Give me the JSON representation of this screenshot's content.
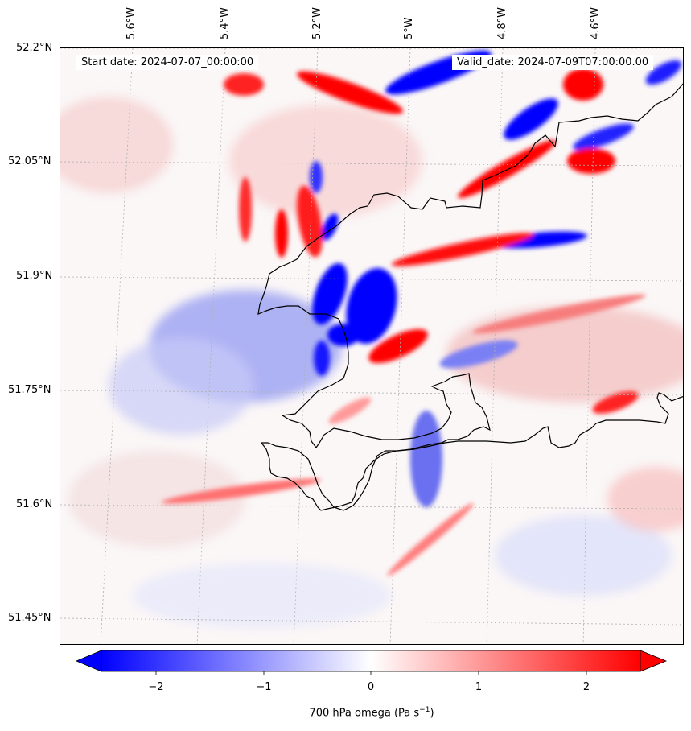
{
  "header": {
    "start_date": "Start date: 2024-07-07_00:00:00",
    "valid_date": "Valid_date: 2024-07-09T07:00:00.00"
  },
  "map": {
    "lat_labels": [
      "52.2°N",
      "52.05°N",
      "51.9°N",
      "51.75°N",
      "51.6°N",
      "51.45°N"
    ],
    "lon_labels": [
      "5.6°W",
      "5.4°W",
      "5.2°W",
      "5°W",
      "4.8°W",
      "4.6°W"
    ],
    "variable": "700 hPa omega",
    "field_colors": {
      "negative": "#0000ff",
      "positive": "#ff0000",
      "neutral": "#ffffff"
    },
    "coastline_color": "#000000",
    "gridline_style": "dotted grey"
  },
  "colorbar": {
    "ticks": [
      "−2",
      "−1",
      "0",
      "1",
      "2"
    ],
    "min": -2.7,
    "max": 2.7,
    "extend": "both",
    "label_text": "700 hPa omega (Pa s",
    "label_exp": "−1",
    "label_close": ")"
  }
}
